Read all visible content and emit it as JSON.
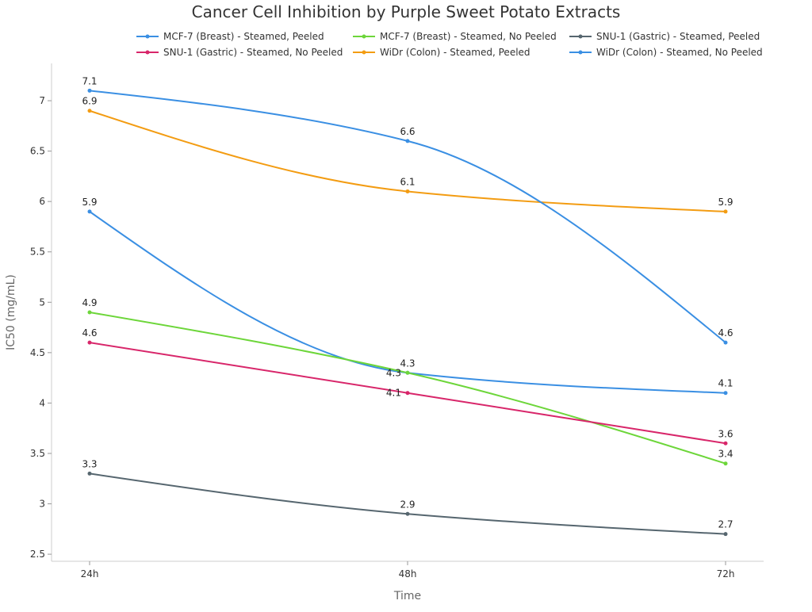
{
  "chart_data": {
    "type": "line",
    "title": "Cancer Cell Inhibition by Purple Sweet Potato Extracts",
    "xlabel": "Time",
    "ylabel": "IC50 (mg/mL)",
    "categories": [
      "24h",
      "48h",
      "72h"
    ],
    "ylim": [
      2.43,
      7.37
    ],
    "yticks": [
      2.5,
      3,
      3.5,
      4,
      4.5,
      5,
      5.5,
      6,
      6.5,
      7
    ],
    "grid": false,
    "legend_position": "top",
    "series": [
      {
        "name": "MCF-7 (Breast) - Steamed, Peeled",
        "color": "#3a8fe3",
        "values": [
          5.9,
          4.3,
          4.1
        ]
      },
      {
        "name": "MCF-7 (Breast) - Steamed, No Peeled",
        "color": "#6dd63a",
        "values": [
          4.9,
          4.3,
          3.4
        ]
      },
      {
        "name": "SNU-1 (Gastric) - Steamed, Peeled",
        "color": "#56666f",
        "values": [
          3.3,
          2.9,
          2.7
        ]
      },
      {
        "name": "SNU-1 (Gastric) - Steamed, No Peeled",
        "color": "#d8266a",
        "values": [
          4.6,
          4.1,
          3.6
        ]
      },
      {
        "name": "WiDr (Colon) - Steamed, Peeled",
        "color": "#f39c12",
        "values": [
          6.9,
          6.1,
          5.9
        ]
      },
      {
        "name": "WiDr (Colon) - Steamed, No Peeled",
        "color": "#3a8fe3",
        "values": [
          7.1,
          6.6,
          4.6
        ]
      }
    ]
  }
}
